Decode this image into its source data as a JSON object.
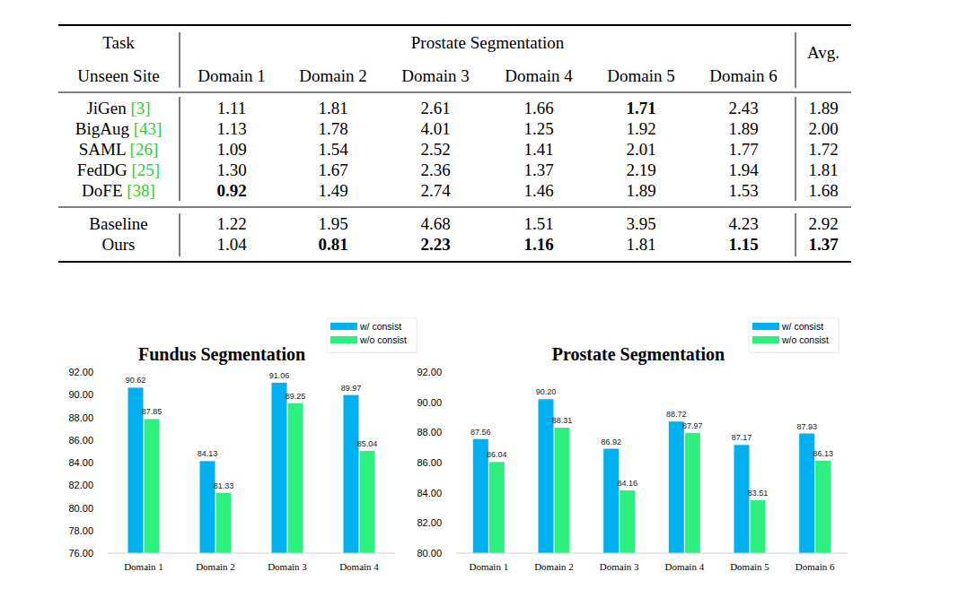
{
  "table": {
    "header": {
      "task": "Task",
      "group": "Prostate Segmentation",
      "avg": "Avg.",
      "site": "Unseen Site",
      "domains": [
        "Domain 1",
        "Domain 2",
        "Domain 3",
        "Domain 4",
        "Domain 5",
        "Domain 6"
      ]
    },
    "body": [
      [
        {
          "name": "JiGen",
          "ref": "[3]",
          "cells": [
            "1.11",
            "1.81",
            "2.61",
            "1.66",
            {
              "text": "1.71",
              "bold": true
            },
            "2.43",
            "1.89"
          ]
        },
        {
          "name": "BigAug",
          "ref": "[43]",
          "cells": [
            "1.13",
            "1.78",
            "4.01",
            "1.25",
            "1.92",
            "1.89",
            "2.00"
          ]
        },
        {
          "name": "SAML",
          "ref": "[26]",
          "cells": [
            "1.09",
            "1.54",
            "2.52",
            "1.41",
            "2.01",
            "1.77",
            "1.72"
          ]
        },
        {
          "name": "FedDG",
          "ref": "[25]",
          "cells": [
            "1.30",
            "1.67",
            "2.36",
            "1.37",
            "2.19",
            "1.94",
            "1.81"
          ]
        },
        {
          "name": "DoFE",
          "ref": "[38]",
          "cells": [
            {
              "text": "0.92",
              "bold": true
            },
            "1.49",
            "2.74",
            "1.46",
            "1.89",
            "1.53",
            "1.68"
          ]
        }
      ],
      [
        {
          "name": "Baseline",
          "cells": [
            "1.22",
            "1.95",
            "4.68",
            "1.51",
            "3.95",
            "4.23",
            "2.92"
          ]
        },
        {
          "name": "Ours",
          "cells": [
            "1.04",
            {
              "text": "0.81",
              "bold": true
            },
            {
              "text": "2.23",
              "bold": true
            },
            {
              "text": "1.16",
              "bold": true
            },
            "1.81",
            {
              "text": "1.15",
              "bold": true
            },
            {
              "text": "1.37",
              "bold": true
            }
          ]
        }
      ]
    ]
  },
  "chart_data": [
    {
      "type": "bar",
      "title": "Fundus Segmentation",
      "categories": [
        "Domain 1",
        "Domain 2",
        "Domain 3",
        "Domain 4"
      ],
      "series": [
        {
          "name": "w/ consist",
          "color": "#00b0f0",
          "values": [
            90.62,
            84.13,
            91.06,
            89.97
          ],
          "value_labels": [
            "90.62",
            "84.13",
            "91.06",
            "89.97"
          ]
        },
        {
          "name": "w/o consist",
          "color": "#2ef07f",
          "values": [
            87.85,
            81.33,
            89.25,
            85.04
          ],
          "value_labels": [
            "87.85",
            "81.33",
            "89.25",
            "85.04"
          ]
        }
      ],
      "ylim": [
        76,
        92
      ],
      "yticks": [
        {
          "value": 76,
          "label": "76.00"
        },
        {
          "value": 78,
          "label": "78.00"
        },
        {
          "value": 80,
          "label": "80.00"
        },
        {
          "value": 82,
          "label": "82.00"
        },
        {
          "value": 84,
          "label": "84.00"
        },
        {
          "value": 86,
          "label": "86.00"
        },
        {
          "value": 88,
          "label": "88.00"
        },
        {
          "value": 90,
          "label": "90.00"
        },
        {
          "value": 92,
          "label": "92.00"
        }
      ],
      "grid": false,
      "legend": "top-right",
      "data_labels": true
    },
    {
      "type": "bar",
      "title": "Prostate Segmentation",
      "categories": [
        "Domain 1",
        "Domain 2",
        "Domain 3",
        "Domain 4",
        "Domain 5",
        "Domain 6"
      ],
      "series": [
        {
          "name": "w/ consist",
          "color": "#00b0f0",
          "values": [
            87.56,
            90.2,
            86.92,
            88.72,
            87.17,
            87.93
          ],
          "value_labels": [
            "87.56",
            "90.20",
            "86.92",
            "88.72",
            "87.17",
            "87.93"
          ]
        },
        {
          "name": "w/o consist",
          "color": "#2ef07f",
          "values": [
            86.04,
            88.31,
            84.16,
            87.97,
            83.51,
            86.13
          ],
          "value_labels": [
            "86.04",
            "88.31",
            "84.16",
            "87.97",
            "83.51",
            "86.13"
          ]
        }
      ],
      "ylim": [
        80,
        92
      ],
      "yticks": [
        {
          "value": 80,
          "label": "80.00"
        },
        {
          "value": 82,
          "label": "82.00"
        },
        {
          "value": 84,
          "label": "84.00"
        },
        {
          "value": 86,
          "label": "86.00"
        },
        {
          "value": 88,
          "label": "88.00"
        },
        {
          "value": 90,
          "label": "90.00"
        },
        {
          "value": 92,
          "label": "92.00"
        }
      ],
      "grid": false,
      "legend": "top-right",
      "data_labels": true
    }
  ]
}
